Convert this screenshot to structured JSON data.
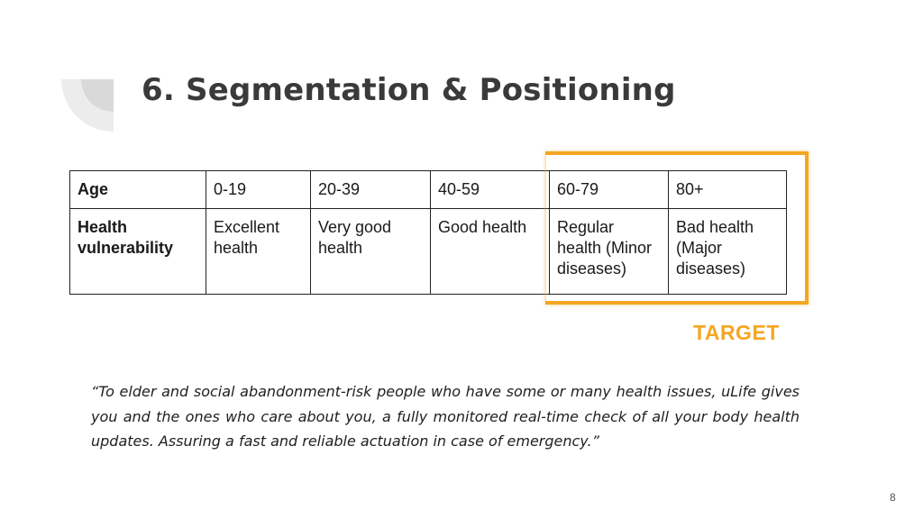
{
  "slide": {
    "title": "6.  Segmentation & Positioning",
    "page_number": "8"
  },
  "table": {
    "header_row": [
      "Age",
      "0-19",
      "20-39",
      "40-59",
      "60-79",
      "80+"
    ],
    "body_row": [
      "Health vulnerability",
      "Excellent health",
      "Very good health",
      "Good health",
      "Regular health (Minor diseases)",
      "Bad health (Major diseases)"
    ]
  },
  "target": {
    "label": "TARGET",
    "color": "#f5a623"
  },
  "quote": {
    "text": "“To elder and social abandonment-risk  people who have some or many health issues, uLife gives you and the ones who care about you, a fully monitored real-time check of all your body health updates. Assuring a fast and reliable actuation in case of emergency.”"
  },
  "decoration": {
    "icon": "quarter-arc-icon"
  }
}
